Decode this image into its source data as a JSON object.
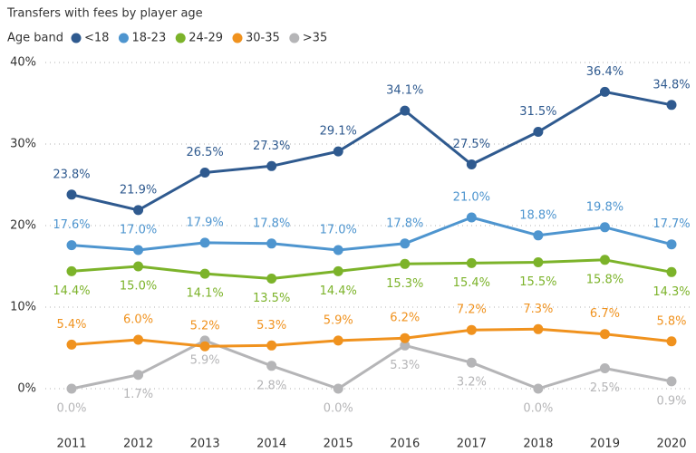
{
  "chart_data": {
    "type": "line",
    "title": "Transfers with fees by player age",
    "legend_title": "Age band",
    "legend": "top-left",
    "grid": true,
    "categories": [
      "2011",
      "2012",
      "2013",
      "2014",
      "2015",
      "2016",
      "2017",
      "2018",
      "2019",
      "2020"
    ],
    "ylim": [
      0,
      40
    ],
    "yticks": [
      {
        "value": 0,
        "label": "0%"
      },
      {
        "value": 10,
        "label": "10%"
      },
      {
        "value": 20,
        "label": "20%"
      },
      {
        "value": 30,
        "label": "30%"
      },
      {
        "value": 40,
        "label": "40%"
      }
    ],
    "series": [
      {
        "name": "<18",
        "color": "#2f5a8f",
        "values": [
          23.8,
          21.9,
          26.5,
          27.3,
          29.1,
          34.1,
          27.5,
          31.5,
          36.4,
          34.8
        ],
        "value_labels": [
          "23.8%",
          "21.9%",
          "26.5%",
          "27.3%",
          "29.1%",
          "34.1%",
          "27.5%",
          "31.5%",
          "36.4%",
          "34.8%"
        ]
      },
      {
        "name": "18-23",
        "color": "#4e95cf",
        "values": [
          17.6,
          17.0,
          17.9,
          17.8,
          17.0,
          17.8,
          21.0,
          18.8,
          19.8,
          17.7
        ],
        "value_labels": [
          "17.6%",
          "17.0%",
          "17.9%",
          "17.8%",
          "17.0%",
          "17.8%",
          "21.0%",
          "18.8%",
          "19.8%",
          "17.7%"
        ]
      },
      {
        "name": "24-29",
        "color": "#7cb32a",
        "values": [
          14.4,
          15.0,
          14.1,
          13.5,
          14.4,
          15.3,
          15.4,
          15.5,
          15.8,
          14.3
        ],
        "value_labels": [
          "14.4%",
          "15.0%",
          "14.1%",
          "13.5%",
          "14.4%",
          "15.3%",
          "15.4%",
          "15.5%",
          "15.8%",
          "14.3%"
        ]
      },
      {
        "name": "30-35",
        "color": "#f0921e",
        "values": [
          5.4,
          6.0,
          5.2,
          5.3,
          5.9,
          6.2,
          7.2,
          7.3,
          6.7,
          5.8
        ],
        "value_labels": [
          "5.4%",
          "6.0%",
          "5.2%",
          "5.3%",
          "5.9%",
          "6.2%",
          "7.2%",
          "7.3%",
          "6.7%",
          "5.8%"
        ]
      },
      {
        "name": ">35",
        "color": "#b5b5b7",
        "values": [
          0.0,
          1.7,
          5.9,
          2.8,
          0.0,
          5.3,
          3.2,
          0.0,
          2.5,
          0.9
        ],
        "value_labels": [
          "0.0%",
          "1.7%",
          "5.9%",
          "2.8%",
          "0.0%",
          "5.3%",
          "3.2%",
          "0.0%",
          "2.5%",
          "0.9%"
        ]
      }
    ]
  }
}
